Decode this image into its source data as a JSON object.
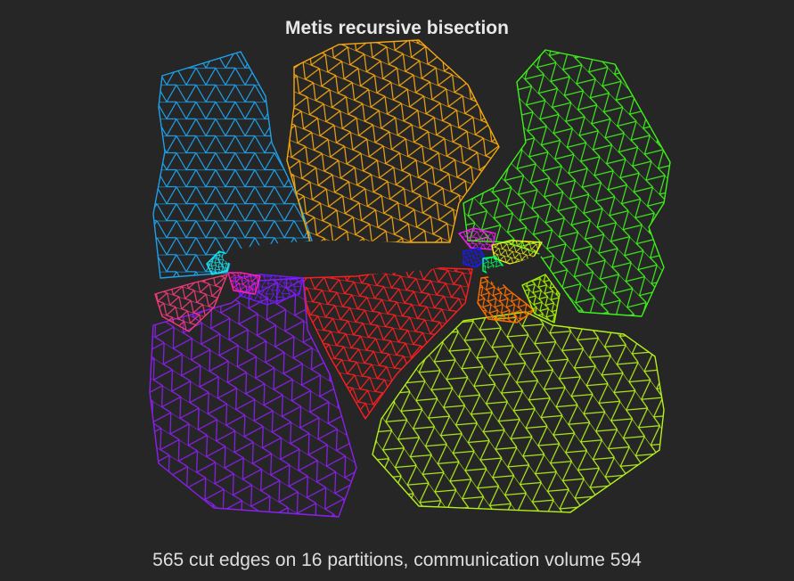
{
  "title": "Metis recursive bisection",
  "caption": "565 cut edges on 16 partitions, communication volume 594",
  "colors": {
    "background": "#262626",
    "airfoil": "#262626",
    "partitions": [
      "#1e9fe8",
      "#f5a70f",
      "#3df01a",
      "#ff1e1e",
      "#8c1ef0",
      "#b4f01a",
      "#f03a78",
      "#ff6e00",
      "#f01ef0",
      "#1a1aff",
      "#18e8e8",
      "#f0f01a",
      "#00ff64",
      "#6e1aff",
      "#ff1eb4",
      "#a0f000"
    ]
  }
}
